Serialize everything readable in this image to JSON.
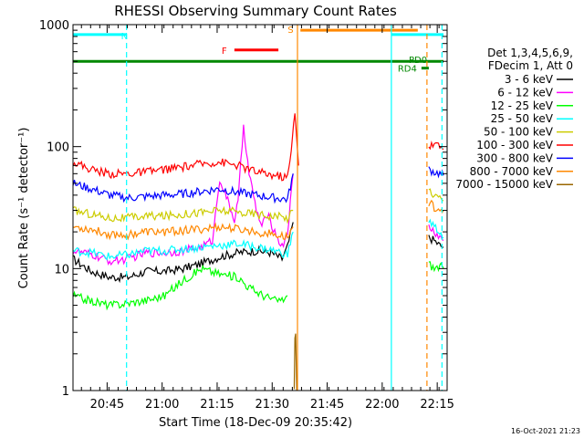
{
  "chart_data": {
    "type": "line",
    "title": "RHESSI Observing Summary Count Rates",
    "xlabel": "Start Time (18-Dec-09 20:35:42)",
    "ylabel": "Count Rate (s⁻¹ detector⁻¹)",
    "y_scale": "log",
    "ylim": [
      1,
      1000
    ],
    "y_ticks": [
      {
        "value": 1,
        "label": "1"
      },
      {
        "value": 10,
        "label": "10"
      },
      {
        "value": 100,
        "label": "100"
      },
      {
        "value": 1000,
        "label": "1000"
      }
    ],
    "x_unit": "minutes after 20:35:42",
    "xlim": [
      0,
      102
    ],
    "x_ticks": [
      {
        "t": 9.3,
        "label": "20:45"
      },
      {
        "t": 24.3,
        "label": "21:00"
      },
      {
        "t": 39.3,
        "label": "21:15"
      },
      {
        "t": 54.3,
        "label": "21:30"
      },
      {
        "t": 69.3,
        "label": "21:45"
      },
      {
        "t": 84.3,
        "label": "22:00"
      },
      {
        "t": 99.3,
        "label": "22:15"
      }
    ],
    "footer_date": "16-Oct-2021 21:23",
    "legend": {
      "header": [
        "Det 1,3,4,5,6,9,",
        "FDecim 1, Att 0"
      ],
      "placement": "right"
    },
    "series": [
      {
        "name": "3 - 6 keV",
        "color": "#000000",
        "segments": [
          {
            "t": [
              0,
              5,
              10,
              15,
              20,
              25,
              30,
              35,
              40,
              45,
              50,
              54,
              57,
              58.5,
              60
            ],
            "v": [
              12,
              9.5,
              8.5,
              8.5,
              9.5,
              9.5,
              10,
              11,
              12.5,
              13.5,
              14,
              13.5,
              12,
              15,
              24
            ]
          },
          {
            "t": [
              97,
              98.5,
              100,
              101
            ],
            "v": [
              18,
              17,
              15.5,
              15
            ]
          }
        ]
      },
      {
        "name": "6 - 12 keV",
        "color": "#ff00ff",
        "segments": [
          {
            "t": [
              0,
              5,
              10,
              15,
              20,
              25,
              30,
              35,
              38,
              40,
              44,
              45,
              46.5,
              48,
              50,
              51.5,
              53,
              55,
              57,
              58.5,
              60
            ],
            "v": [
              14,
              13,
              11.5,
              12,
              13.5,
              13.5,
              14,
              15,
              17,
              55,
              25,
              35,
              150,
              60,
              30,
              22,
              28,
              20,
              15,
              20,
              60
            ]
          },
          {
            "t": [
              97,
              98.5,
              100,
              101
            ],
            "v": [
              22,
              20,
              18,
              17
            ]
          }
        ]
      },
      {
        "name": "12 - 25 keV",
        "color": "#00ff00",
        "segments": [
          {
            "t": [
              0,
              4,
              10,
              15,
              20,
              25,
              30,
              35,
              40,
              45,
              48,
              52,
              55,
              57,
              58.5
            ],
            "v": [
              6,
              5.5,
              5,
              5.2,
              5.5,
              6,
              8,
              10,
              9,
              8.5,
              7,
              6,
              5.5,
              5.5,
              6
            ]
          },
          {
            "t": [
              97,
              98.5,
              100,
              101
            ],
            "v": [
              11,
              10,
              10.5,
              10
            ]
          }
        ]
      },
      {
        "name": "25 - 50 keV",
        "color": "#00ffff",
        "segments": [
          {
            "t": [
              0,
              5,
              10,
              15,
              20,
              25,
              30,
              35,
              40,
              45,
              50,
              55,
              58.5,
              60
            ],
            "v": [
              14,
              13.5,
              12.5,
              13,
              14,
              14,
              14.5,
              15,
              15.5,
              16,
              15,
              14,
              13,
              20
            ]
          },
          {
            "t": [
              97,
              98.5,
              100,
              101
            ],
            "v": [
              25,
              22,
              20,
              18
            ]
          }
        ]
      },
      {
        "name": "50 - 100 keV",
        "color": "#cccc00",
        "segments": [
          {
            "t": [
              0,
              5,
              10,
              15,
              20,
              25,
              30,
              35,
              40,
              45,
              50,
              55,
              58.5,
              60
            ],
            "v": [
              30,
              28,
              26,
              26,
              27,
              27,
              28,
              29,
              30,
              29,
              28,
              27,
              26,
              30
            ]
          },
          {
            "t": [
              97,
              98.5,
              100,
              101
            ],
            "v": [
              45,
              40,
              38,
              36
            ]
          }
        ]
      },
      {
        "name": "100 - 300 keV",
        "color": "#ff0000",
        "segments": [
          {
            "t": [
              0,
              5,
              10,
              15,
              20,
              25,
              30,
              35,
              40,
              45,
              50,
              55,
              58.5,
              59.5,
              60.5,
              61.5
            ],
            "v": [
              75,
              65,
              60,
              60,
              62,
              65,
              68,
              72,
              75,
              70,
              62,
              58,
              56,
              90,
              200,
              70
            ]
          },
          {
            "t": [
              97,
              98.5,
              100,
              101
            ],
            "v": [
              100,
              105,
              100,
              95
            ]
          }
        ]
      },
      {
        "name": "300 - 800 keV",
        "color": "#0000ff",
        "segments": [
          {
            "t": [
              0,
              5,
              10,
              15,
              20,
              25,
              30,
              35,
              40,
              45,
              50,
              55,
              58.5,
              60
            ],
            "v": [
              50,
              45,
              40,
              38,
              39,
              40,
              41,
              43,
              45,
              42,
              40,
              38,
              37,
              60
            ]
          },
          {
            "t": [
              97,
              98.5,
              100,
              101
            ],
            "v": [
              65,
              62,
              60,
              58
            ]
          }
        ]
      },
      {
        "name": "800 - 7000 keV",
        "color": "#ff8800",
        "segments": [
          {
            "t": [
              0,
              5,
              10,
              15,
              20,
              25,
              30,
              35,
              40,
              45,
              50,
              55,
              58.5,
              60
            ],
            "v": [
              22,
              21,
              19,
              19,
              20,
              20,
              20.5,
              21,
              22,
              21,
              20,
              19,
              18,
              22
            ]
          },
          {
            "t": [
              97,
              98.5,
              100,
              101
            ],
            "v": [
              35,
              32,
              31,
              30
            ]
          }
        ]
      },
      {
        "name": "7000 - 15000 keV",
        "color": "#996600",
        "segments": [
          {
            "t": [
              60.3,
              60.5,
              60.7,
              61
            ],
            "v": [
              1,
              2.5,
              2.8,
              1
            ]
          }
        ]
      }
    ],
    "bands": [
      {
        "label": "N",
        "color": "#00ffff",
        "segments": [
          [
            0,
            14.6
          ],
          [
            86.8,
            101
          ]
        ],
        "level": 830
      },
      {
        "label": "F",
        "color": "#ff0000",
        "segments": [
          [
            44,
            56
          ]
        ],
        "level": 620
      },
      {
        "label": "S",
        "color": "#ff8800",
        "segments": [
          [
            62,
            94
          ]
        ],
        "level": 900
      },
      {
        "label": "PD0",
        "color": "#008800",
        "segments": [
          [
            0,
            101
          ]
        ],
        "level": 500
      },
      {
        "label": "RD4",
        "color": "#008800",
        "segments": [
          [
            95,
            97
          ]
        ],
        "level": 440
      }
    ],
    "vlines": [
      {
        "t": 14.6,
        "color": "#00ffff",
        "style": "dashed"
      },
      {
        "t": 61.2,
        "color": "#ff8800",
        "style": "solid"
      },
      {
        "t": 86.8,
        "color": "#00ffff",
        "style": "solid"
      },
      {
        "t": 96.5,
        "color": "#ff8800",
        "style": "dashed"
      },
      {
        "t": 100.6,
        "color": "#00ffff",
        "style": "dashed"
      }
    ]
  }
}
